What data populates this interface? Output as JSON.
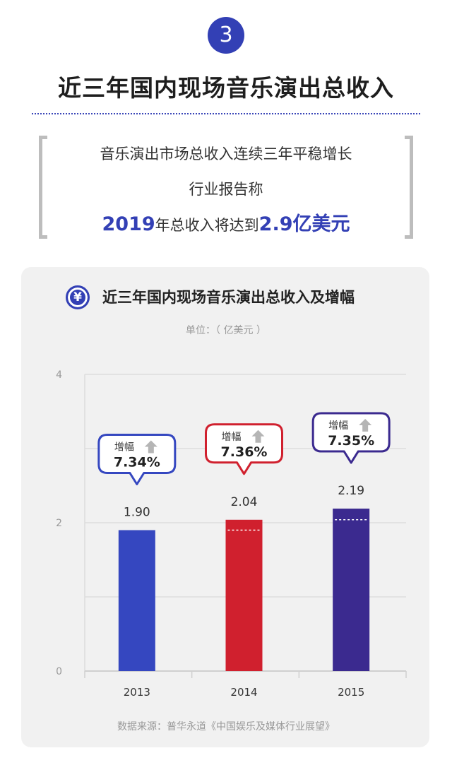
{
  "header": {
    "step_number": "3",
    "title": "近三年国内现场音乐演出总收入"
  },
  "quote": {
    "line1": "音乐演出市场总收入连续三年平稳增长",
    "line2": "行业报告称",
    "line3_part1": "2019",
    "line3_part2": "年总收入将达到",
    "line3_part3": "2.9亿美元"
  },
  "chart_icon_symbol": "¥",
  "chart_data": {
    "type": "bar",
    "title": "近三年国内现场音乐演出总收入及增幅",
    "unit": "单位：（ 亿美元 ）",
    "categories": [
      "2013",
      "2014",
      "2015"
    ],
    "values": [
      1.9,
      2.04,
      2.19
    ],
    "value_labels": [
      "1.90",
      "2.04",
      "2.19"
    ],
    "growth_label": "增幅",
    "growth_values": [
      "7.34%",
      "7.36%",
      "7.35%"
    ],
    "colors": [
      "#3547c0",
      "#d0202e",
      "#3b2a8f"
    ],
    "yticks": [
      "0",
      "2",
      "4"
    ],
    "ylim": [
      0,
      4
    ],
    "grid": true,
    "source": "数据来源：普华永道《中国娱乐及媒体行业展望》"
  },
  "colors": {
    "accent": "#3340b5"
  }
}
